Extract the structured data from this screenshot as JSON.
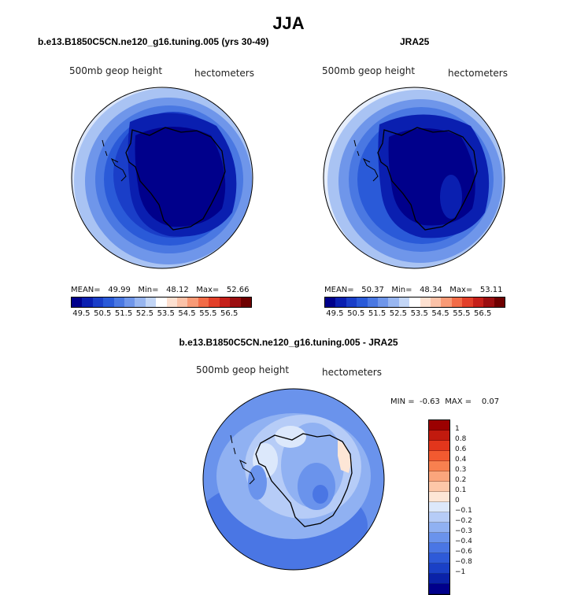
{
  "title": "JJA",
  "left_panel": {
    "title": "b.e13.B1850C5CN.ne120_g16.tuning.005 (yrs 30-49)",
    "field_label": "500mb geop height",
    "units_label": "hectometers",
    "mean_label": "MEAN=",
    "mean": "49.99",
    "min_label": "Min=",
    "min": "48.12",
    "max_label": "Max=",
    "max": "52.66"
  },
  "right_panel": {
    "title": "JRA25",
    "field_label": "500mb geop height",
    "units_label": "hectometers",
    "mean_label": "MEAN=",
    "mean": "50.37",
    "min_label": "Min=",
    "min": "48.34",
    "max_label": "Max=",
    "max": "53.11"
  },
  "top_colorbar": {
    "colors": [
      "#00008b",
      "#0a1fb0",
      "#1a3ec8",
      "#2a5ad8",
      "#4a78e2",
      "#6f96ea",
      "#98b6f0",
      "#c3d6f6",
      "#ffffff",
      "#fde0d0",
      "#fbc2a8",
      "#f89a76",
      "#f26c48",
      "#e2402a",
      "#c5201a",
      "#9b0e10",
      "#6e0000"
    ],
    "tick_labels": [
      "49.5",
      "50.5",
      "51.5",
      "52.5",
      "53.5",
      "54.5",
      "55.5",
      "56.5"
    ]
  },
  "diff_panel": {
    "title": "b.e13.B1850C5CN.ne120_g16.tuning.005 - JRA25",
    "field_label": "500mb geop height",
    "units_label": "hectometers",
    "min_label": "MIN =",
    "min": "-0.63",
    "max_label": "MAX =",
    "max": "0.07"
  },
  "diff_colorbar": {
    "colors": [
      "#9b0000",
      "#c21a0e",
      "#e2361c",
      "#f25a30",
      "#f8804f",
      "#fba57c",
      "#fdc7a8",
      "#fde6d6",
      "#dce8fb",
      "#b6ccf7",
      "#90b1f2",
      "#6a93ec",
      "#4a76e4",
      "#2e5ad8",
      "#1a40c6",
      "#0a22a8",
      "#00008b"
    ],
    "tick_labels": [
      "1",
      "0.8",
      "0.6",
      "0.4",
      "0.3",
      "0.2",
      "0.1",
      "0",
      "−0.1",
      "−0.2",
      "−0.3",
      "−0.4",
      "−0.6",
      "−0.8",
      "−1"
    ]
  },
  "colors": {
    "deep_blue": "#0a1a9c",
    "mid_blue": "#2a4fd0",
    "light_blue": "#8fb0f0",
    "pale_orange": "#fde3cf"
  }
}
